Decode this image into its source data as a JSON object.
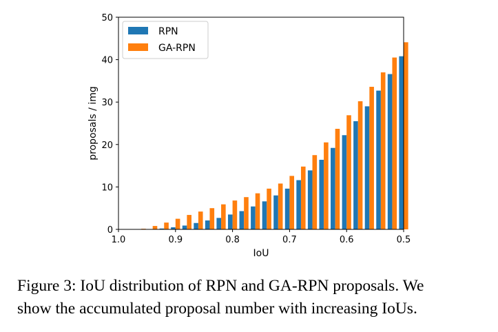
{
  "chart_data": {
    "type": "bar",
    "xlabel": "IoU",
    "ylabel": "proposals / img",
    "xlim": [
      1.0,
      0.5
    ],
    "ylim": [
      0,
      50
    ],
    "x_ticks": [
      "1.0",
      "0.9",
      "0.8",
      "0.7",
      "0.6",
      "0.5"
    ],
    "y_ticks": [
      "0",
      "10",
      "20",
      "30",
      "40",
      "50"
    ],
    "grid": false,
    "legend_position": "upper-left",
    "x": [
      0.98,
      0.96,
      0.94,
      0.92,
      0.9,
      0.88,
      0.86,
      0.84,
      0.82,
      0.8,
      0.78,
      0.76,
      0.74,
      0.72,
      0.7,
      0.68,
      0.66,
      0.64,
      0.62,
      0.6,
      0.58,
      0.56,
      0.54,
      0.52,
      0.5
    ],
    "series": [
      {
        "name": "RPN",
        "color": "#1f77b4",
        "values": [
          0.0,
          0.0,
          0.05,
          0.2,
          0.5,
          0.9,
          1.5,
          2.1,
          2.7,
          3.5,
          4.3,
          5.4,
          6.6,
          8.0,
          9.6,
          11.6,
          13.9,
          16.4,
          19.2,
          22.2,
          25.5,
          29.0,
          32.7,
          36.6,
          40.8
        ]
      },
      {
        "name": "GA-RPN",
        "color": "#ff7f0e",
        "values": [
          0.0,
          0.15,
          0.8,
          1.6,
          2.5,
          3.4,
          4.2,
          5.0,
          5.9,
          6.8,
          7.6,
          8.5,
          9.6,
          10.8,
          12.6,
          14.8,
          17.5,
          20.5,
          23.7,
          26.9,
          30.2,
          33.6,
          37.0,
          40.5,
          44.1
        ]
      }
    ]
  },
  "caption": {
    "line1": "Figure 3: IoU distribution of RPN and GA-RPN proposals. We",
    "line2": "show the accumulated proposal number with increasing IoUs."
  }
}
